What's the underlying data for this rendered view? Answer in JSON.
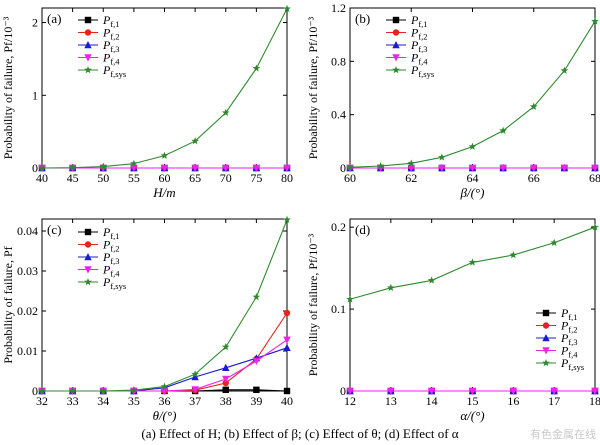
{
  "figure": {
    "caption": "(a) Effect of H; (b) Effect of β; (c) Effect of θ; (d) Effect of α",
    "watermark": "有色金属在线"
  },
  "legend_labels": [
    "P",
    "P",
    "P",
    "P",
    "P"
  ],
  "legend_subs": [
    "f,1",
    "f,2",
    "f,3",
    "f,4",
    "f,sys"
  ],
  "series_style": [
    {
      "color": "#000000",
      "marker": "square"
    },
    {
      "color": "#e8231d",
      "marker": "circle"
    },
    {
      "color": "#1b1bd6",
      "marker": "triangle"
    },
    {
      "color": "#ee22ee",
      "marker": "triangle-down"
    },
    {
      "color": "#2f8a2f",
      "marker": "star"
    }
  ],
  "chart_data": [
    {
      "type": "line",
      "panel_label": "(a)",
      "xlabel": "H/m",
      "ylabel": "Probability of failure, Pf/10⁻³",
      "xlim": [
        40,
        80
      ],
      "ylim": [
        0,
        2.2
      ],
      "xticks": [
        "40",
        "45",
        "50",
        "55",
        "60",
        "65",
        "70",
        "75",
        "80"
      ],
      "yticks": [
        "0",
        "1",
        "2"
      ],
      "x": [
        40,
        45,
        50,
        55,
        60,
        65,
        70,
        75,
        80
      ],
      "series": [
        {
          "name": "Pf,1",
          "values": [
            0,
            0,
            0,
            0,
            0,
            0,
            0,
            0,
            0
          ]
        },
        {
          "name": "Pf,2",
          "values": [
            0,
            0,
            0,
            0,
            0,
            0,
            0,
            0,
            0
          ]
        },
        {
          "name": "Pf,3",
          "values": [
            0,
            0,
            0,
            0,
            0,
            0,
            0,
            0,
            0
          ]
        },
        {
          "name": "Pf,4",
          "values": [
            0,
            0,
            0,
            0,
            0,
            0,
            0,
            0,
            0
          ]
        },
        {
          "name": "Pf,sys",
          "values": [
            0,
            0.005,
            0.02,
            0.06,
            0.17,
            0.37,
            0.76,
            1.37,
            2.19
          ]
        }
      ]
    },
    {
      "type": "line",
      "panel_label": "(b)",
      "xlabel": "β/(°)",
      "ylabel": "Probability of failure, Pf/10⁻³",
      "xlim": [
        60,
        68
      ],
      "ylim": [
        0,
        1.2
      ],
      "xticks": [
        "60",
        "62",
        "64",
        "66",
        "68"
      ],
      "yticks": [
        "0",
        "0.4",
        "0.8",
        "1.2"
      ],
      "x": [
        60,
        61,
        62,
        63,
        64,
        65,
        66,
        67,
        68
      ],
      "series": [
        {
          "name": "Pf,1",
          "values": [
            0,
            0,
            0,
            0,
            0,
            0,
            0,
            0,
            0
          ]
        },
        {
          "name": "Pf,2",
          "values": [
            0,
            0,
            0,
            0,
            0,
            0,
            0,
            0,
            0
          ]
        },
        {
          "name": "Pf,3",
          "values": [
            0,
            0,
            0,
            0,
            0,
            0,
            0,
            0,
            0
          ]
        },
        {
          "name": "Pf,4",
          "values": [
            0,
            0,
            0,
            0,
            0,
            0,
            0,
            0,
            0
          ]
        },
        {
          "name": "Pf,sys",
          "values": [
            0.005,
            0.015,
            0.035,
            0.08,
            0.16,
            0.28,
            0.46,
            0.73,
            1.1
          ]
        }
      ]
    },
    {
      "type": "line",
      "panel_label": "(c)",
      "xlabel": "θ/(°)",
      "ylabel": "Probability of failure, Pf",
      "xlim": [
        32,
        40
      ],
      "ylim": [
        0,
        0.043
      ],
      "xticks": [
        "32",
        "33",
        "34",
        "35",
        "36",
        "37",
        "38",
        "39",
        "40"
      ],
      "yticks": [
        "0",
        "0.01",
        "0.02",
        "0.03",
        "0.04"
      ],
      "x": [
        32,
        33,
        34,
        35,
        36,
        37,
        38,
        39,
        40
      ],
      "series": [
        {
          "name": "Pf,1",
          "values": [
            0,
            0,
            0,
            0,
            0,
            0,
            0.0003,
            0.0003,
            0
          ]
        },
        {
          "name": "Pf,2",
          "values": [
            0,
            0,
            0,
            0,
            0,
            0.0002,
            0.002,
            0.008,
            0.0195
          ]
        },
        {
          "name": "Pf,3",
          "values": [
            0,
            0,
            0,
            0,
            0.0008,
            0.0035,
            0.0058,
            0.0082,
            0.0108
          ]
        },
        {
          "name": "Pf,4",
          "values": [
            0,
            0,
            0,
            0,
            0,
            0.0004,
            0.003,
            0.0075,
            0.0128
          ]
        },
        {
          "name": "Pf,sys",
          "values": [
            0,
            0,
            0,
            0.0002,
            0.0011,
            0.0042,
            0.011,
            0.0235,
            0.0428
          ]
        }
      ]
    },
    {
      "type": "line",
      "panel_label": "(d)",
      "xlabel": "α/(°)",
      "ylabel": "Probability of failure, Pf/10⁻³",
      "xlim": [
        12,
        18
      ],
      "ylim": [
        0,
        0.21
      ],
      "xticks": [
        "12",
        "13",
        "14",
        "15",
        "16",
        "17",
        "18"
      ],
      "yticks": [
        "0",
        "0.1",
        "0.2"
      ],
      "x": [
        12,
        13,
        14,
        15,
        16,
        17,
        18
      ],
      "series": [
        {
          "name": "Pf,1",
          "values": [
            0,
            0,
            0,
            0,
            0,
            0,
            0
          ]
        },
        {
          "name": "Pf,2",
          "values": [
            0,
            0,
            0,
            0,
            0,
            0,
            0
          ]
        },
        {
          "name": "Pf,3",
          "values": [
            0,
            0,
            0,
            0,
            0,
            0,
            0
          ]
        },
        {
          "name": "Pf,4",
          "values": [
            0,
            0,
            0,
            0,
            0,
            0,
            0
          ]
        },
        {
          "name": "Pf,sys",
          "values": [
            0.112,
            0.126,
            0.135,
            0.157,
            0.166,
            0.181,
            0.2
          ]
        }
      ]
    }
  ]
}
